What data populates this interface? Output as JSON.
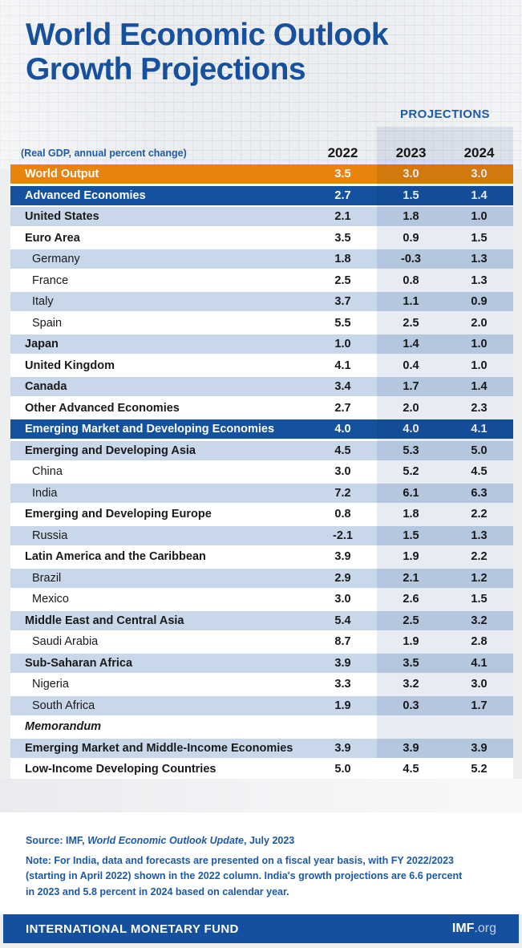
{
  "title": {
    "line1": "World Economic Outlook",
    "line2": "Growth Projections"
  },
  "table": {
    "subtitle": "(Real GDP, annual percent change)",
    "projections_label": "PROJECTIONS",
    "years": [
      "2022",
      "2023",
      "2024"
    ],
    "rows": [
      {
        "label": "World Output",
        "type": "orange",
        "indent": false,
        "bold": true,
        "italic": false,
        "values": [
          "3.5",
          "3.0",
          "3.0"
        ]
      },
      {
        "label": "Advanced Economies",
        "type": "section",
        "indent": false,
        "bold": true,
        "italic": false,
        "values": [
          "2.7",
          "1.5",
          "1.4"
        ]
      },
      {
        "label": "United States",
        "type": "light",
        "indent": false,
        "bold": true,
        "italic": false,
        "values": [
          "2.1",
          "1.8",
          "1.0"
        ]
      },
      {
        "label": "Euro Area",
        "type": "white",
        "indent": false,
        "bold": true,
        "italic": false,
        "values": [
          "3.5",
          "0.9",
          "1.5"
        ]
      },
      {
        "label": "Germany",
        "type": "light",
        "indent": true,
        "bold": false,
        "italic": false,
        "values": [
          "1.8",
          "-0.3",
          "1.3"
        ]
      },
      {
        "label": "France",
        "type": "white",
        "indent": true,
        "bold": false,
        "italic": false,
        "values": [
          "2.5",
          "0.8",
          "1.3"
        ]
      },
      {
        "label": "Italy",
        "type": "light",
        "indent": true,
        "bold": false,
        "italic": false,
        "values": [
          "3.7",
          "1.1",
          "0.9"
        ]
      },
      {
        "label": "Spain",
        "type": "white",
        "indent": true,
        "bold": false,
        "italic": false,
        "values": [
          "5.5",
          "2.5",
          "2.0"
        ]
      },
      {
        "label": "Japan",
        "type": "light",
        "indent": false,
        "bold": true,
        "italic": false,
        "values": [
          "1.0",
          "1.4",
          "1.0"
        ]
      },
      {
        "label": "United Kingdom",
        "type": "white",
        "indent": false,
        "bold": true,
        "italic": false,
        "values": [
          "4.1",
          "0.4",
          "1.0"
        ]
      },
      {
        "label": "Canada",
        "type": "light",
        "indent": false,
        "bold": true,
        "italic": false,
        "values": [
          "3.4",
          "1.7",
          "1.4"
        ]
      },
      {
        "label": "Other Advanced Economies",
        "type": "white",
        "indent": false,
        "bold": true,
        "italic": false,
        "values": [
          "2.7",
          "2.0",
          "2.3"
        ]
      },
      {
        "label": "Emerging Market and Developing Economies",
        "type": "section",
        "indent": false,
        "bold": true,
        "italic": false,
        "values": [
          "4.0",
          "4.0",
          "4.1"
        ]
      },
      {
        "label": "Emerging and Developing Asia",
        "type": "light",
        "indent": false,
        "bold": true,
        "italic": false,
        "values": [
          "4.5",
          "5.3",
          "5.0"
        ]
      },
      {
        "label": "China",
        "type": "white",
        "indent": true,
        "bold": false,
        "italic": false,
        "values": [
          "3.0",
          "5.2",
          "4.5"
        ]
      },
      {
        "label": "India",
        "type": "light",
        "indent": true,
        "bold": false,
        "italic": false,
        "values": [
          "7.2",
          "6.1",
          "6.3"
        ]
      },
      {
        "label": "Emerging and Developing Europe",
        "type": "white",
        "indent": false,
        "bold": true,
        "italic": false,
        "values": [
          "0.8",
          "1.8",
          "2.2"
        ]
      },
      {
        "label": "Russia",
        "type": "light",
        "indent": true,
        "bold": false,
        "italic": false,
        "values": [
          "-2.1",
          "1.5",
          "1.3"
        ]
      },
      {
        "label": "Latin America and the Caribbean",
        "type": "white",
        "indent": false,
        "bold": true,
        "italic": false,
        "values": [
          "3.9",
          "1.9",
          "2.2"
        ]
      },
      {
        "label": "Brazil",
        "type": "light",
        "indent": true,
        "bold": false,
        "italic": false,
        "values": [
          "2.9",
          "2.1",
          "1.2"
        ]
      },
      {
        "label": "Mexico",
        "type": "white",
        "indent": true,
        "bold": false,
        "italic": false,
        "values": [
          "3.0",
          "2.6",
          "1.5"
        ]
      },
      {
        "label": "Middle East and Central Asia",
        "type": "light",
        "indent": false,
        "bold": true,
        "italic": false,
        "values": [
          "5.4",
          "2.5",
          "3.2"
        ]
      },
      {
        "label": "Saudi Arabia",
        "type": "white",
        "indent": true,
        "bold": false,
        "italic": false,
        "values": [
          "8.7",
          "1.9",
          "2.8"
        ]
      },
      {
        "label": "Sub-Saharan Africa",
        "type": "light",
        "indent": false,
        "bold": true,
        "italic": false,
        "values": [
          "3.9",
          "3.5",
          "4.1"
        ]
      },
      {
        "label": "Nigeria",
        "type": "white",
        "indent": true,
        "bold": false,
        "italic": false,
        "values": [
          "3.3",
          "3.2",
          "3.0"
        ]
      },
      {
        "label": "South Africa",
        "type": "light",
        "indent": true,
        "bold": false,
        "italic": false,
        "values": [
          "1.9",
          "0.3",
          "1.7"
        ]
      },
      {
        "label": "Memorandum",
        "type": "white",
        "indent": false,
        "bold": true,
        "italic": true,
        "values": [
          "",
          "",
          ""
        ]
      },
      {
        "label": "Emerging Market and Middle-Income Economies",
        "type": "light",
        "indent": false,
        "bold": true,
        "italic": false,
        "values": [
          "3.9",
          "3.9",
          "3.9"
        ]
      },
      {
        "label": "Low-Income Developing Countries",
        "type": "white",
        "indent": false,
        "bold": true,
        "italic": false,
        "values": [
          "5.0",
          "4.5",
          "5.2"
        ]
      }
    ]
  },
  "notes": {
    "source_prefix": "Source: IMF, ",
    "source_italic": "World Economic Outlook Update",
    "source_suffix": ", July 2023",
    "note": "Note: For India, data and forecasts are presented on a fiscal year basis, with FY 2022/2023 (starting in April 2022) shown in the 2022 column. India's growth projections are 6.6 percent in 2023 and 5.8 percent in 2024 based on calendar year."
  },
  "footer": {
    "org": "INTERNATIONAL MONETARY FUND",
    "site_bold": "IMF",
    "site_rest": ".org"
  },
  "colors": {
    "title_blue": "#17509D",
    "section_blue": "#14529E",
    "orange": "#E8830E",
    "row_light_blue": "#C8D7E9",
    "projection_band": "#E7ECF4",
    "note_blue": "#1C59A6",
    "footer_blue": "#14509E"
  }
}
